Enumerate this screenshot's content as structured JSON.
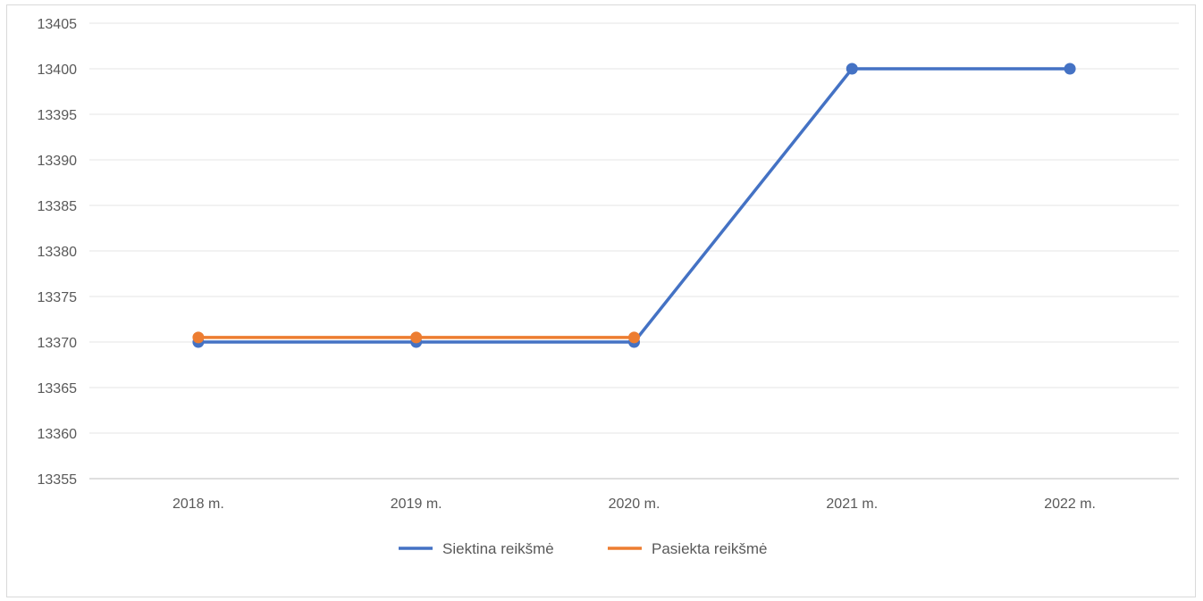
{
  "chart_data": {
    "type": "line",
    "title": "",
    "xlabel": "",
    "ylabel": "",
    "categories": [
      "2018 m.",
      "2019 m.",
      "2020 m.",
      "2021 m.",
      "2022 m."
    ],
    "ylim": [
      13355,
      13405
    ],
    "yticks": [
      13355,
      13360,
      13365,
      13370,
      13375,
      13380,
      13385,
      13390,
      13395,
      13400,
      13405
    ],
    "grid": true,
    "legend_position": "bottom",
    "series": [
      {
        "name": "Siektina reikšmė",
        "color": "#4472C4",
        "values": [
          13370,
          13370,
          13370,
          13400,
          13400
        ]
      },
      {
        "name": "Pasiekta reikšmė",
        "color": "#ED7D31",
        "values": [
          13370.5,
          13370.5,
          13370.5,
          null,
          null
        ]
      }
    ]
  }
}
